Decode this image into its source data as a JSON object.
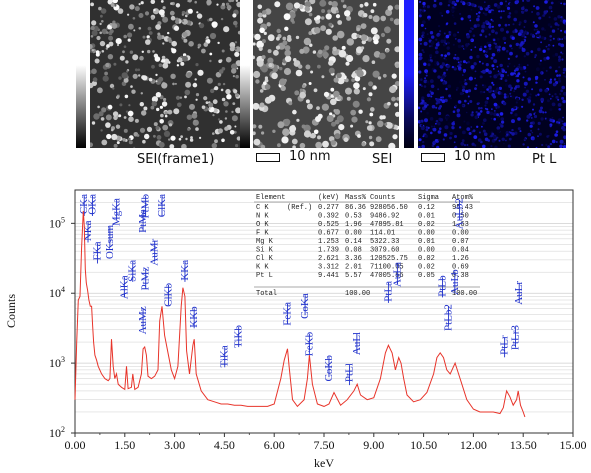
{
  "images": {
    "frame1_label": "SEI(frame1)",
    "sei_label": "SEI",
    "ptl_label": "Pt L",
    "scale1": "10 nm",
    "scale2": "10 nm"
  },
  "colors": {
    "spectrum": "#e8342a",
    "peak_markers": "#2233cc",
    "grid": "#cfcfcf",
    "pt_map": "#1c1cd8"
  },
  "table": {
    "headers": [
      "Element",
      "(keV)",
      "Mass%",
      "Counts",
      "Sigma",
      "Atom%"
    ],
    "rows": [
      [
        "C K",
        "0.277",
        "86.36",
        "928056.50",
        "0.12",
        "95.43"
      ],
      [
        "N K",
        "0.392",
        "0.53",
        "9486.92",
        "0.01",
        "0.50"
      ],
      [
        "O K",
        "0.525",
        "1.96",
        "47895.81",
        "0.02",
        "1.63"
      ],
      [
        "F K",
        "0.677",
        "0.00",
        "114.01",
        "0.00",
        "0.00"
      ],
      [
        "Mg K",
        "1.253",
        "0.14",
        "5322.33",
        "0.01",
        "0.07"
      ],
      [
        "Si K",
        "1.739",
        "0.08",
        "3079.60",
        "0.00",
        "0.04"
      ],
      [
        "Cl K",
        "2.621",
        "3.36",
        "120525.75",
        "0.02",
        "1.26"
      ],
      [
        "K K",
        "3.312",
        "2.01",
        "71100.05",
        "0.02",
        "0.69"
      ],
      [
        "Pt L",
        "9.441",
        "5.57",
        "47005.56",
        "0.05",
        "0.38"
      ]
    ],
    "ref_note": "(Ref.)",
    "total_label": "Total",
    "total_mass": "100.00",
    "total_atom": "100.00"
  },
  "chart_data": {
    "type": "line",
    "xlabel": "keV",
    "ylabel": "Counts",
    "yscale": "log",
    "xlim": [
      0,
      15
    ],
    "ylim": [
      100,
      300000
    ],
    "xticks": [
      "0.00",
      "1.50",
      "3.00",
      "4.50",
      "6.00",
      "7.50",
      "9.00",
      "10.50",
      "12.00",
      "13.50",
      "15.00"
    ],
    "yticks": [
      {
        "value": 100,
        "exp": "2"
      },
      {
        "value": 1000,
        "exp": "3"
      },
      {
        "value": 10000,
        "exp": "4"
      },
      {
        "value": 100000,
        "exp": "5"
      }
    ],
    "grid": true,
    "series": [
      {
        "x": [
          0.0,
          0.05,
          0.1,
          0.15,
          0.2,
          0.25,
          0.28,
          0.31,
          0.34,
          0.38,
          0.42,
          0.46,
          0.5,
          0.53,
          0.56,
          0.6,
          0.65,
          0.7,
          0.8,
          0.9,
          1.0,
          1.05,
          1.1,
          1.15,
          1.2,
          1.25,
          1.3,
          1.4,
          1.5,
          1.55,
          1.6,
          1.7,
          1.74,
          1.8,
          1.9,
          2.0,
          2.05,
          2.1,
          2.15,
          2.2,
          2.3,
          2.4,
          2.5,
          2.55,
          2.62,
          2.7,
          2.8,
          2.9,
          3.0,
          3.1,
          3.2,
          3.25,
          3.31,
          3.36,
          3.45,
          3.55,
          3.59,
          3.65,
          3.8,
          4.0,
          4.2,
          4.4,
          4.5,
          4.6,
          4.8,
          5.0,
          5.2,
          5.5,
          5.8,
          6.0,
          6.2,
          6.3,
          6.4,
          6.45,
          6.55,
          6.7,
          6.9,
          7.0,
          7.06,
          7.15,
          7.3,
          7.5,
          7.65,
          7.8,
          8.0,
          8.2,
          8.4,
          8.5,
          8.6,
          8.8,
          9.0,
          9.2,
          9.35,
          9.44,
          9.55,
          9.65,
          9.75,
          9.82,
          9.9,
          10.0,
          10.2,
          10.4,
          10.6,
          10.8,
          10.9,
          11.0,
          11.1,
          11.2,
          11.3,
          11.45,
          11.6,
          11.8,
          12.0,
          12.2,
          12.4,
          12.6,
          12.8,
          12.9,
          13.0,
          13.1,
          13.2,
          13.3,
          13.35,
          13.42,
          13.5,
          13.55
        ],
        "y": [
          300,
          2000,
          8000,
          9000,
          45000,
          150000,
          90000,
          22000,
          14000,
          11000,
          8000,
          6500,
          6500,
          3500,
          2000,
          1300,
          1100,
          900,
          700,
          600,
          560,
          600,
          2200,
          900,
          600,
          700,
          500,
          450,
          420,
          900,
          430,
          450,
          700,
          420,
          450,
          700,
          1600,
          1700,
          1300,
          650,
          600,
          650,
          800,
          4000,
          6500,
          2500,
          1400,
          800,
          600,
          900,
          6500,
          12000,
          9000,
          1500,
          700,
          1800,
          2200,
          700,
          400,
          300,
          280,
          260,
          260,
          260,
          250,
          250,
          240,
          240,
          240,
          260,
          600,
          1100,
          1600,
          900,
          300,
          240,
          300,
          600,
          1300,
          500,
          260,
          240,
          260,
          380,
          250,
          300,
          400,
          500,
          350,
          300,
          320,
          600,
          1400,
          1800,
          1400,
          800,
          1200,
          1000,
          600,
          350,
          280,
          300,
          380,
          700,
          1200,
          1400,
          1200,
          800,
          700,
          1000,
          600,
          300,
          220,
          200,
          200,
          200,
          190,
          230,
          400,
          330,
          250,
          300,
          400,
          250,
          200,
          170
        ]
      }
    ],
    "peaks": [
      {
        "label": "CKa",
        "x": 0.277,
        "y": 2000000
      },
      {
        "label": "OKa",
        "x": 0.525,
        "y": 1400000
      },
      {
        "label": "NKa",
        "x": 0.392,
        "y": 110000
      },
      {
        "label": "FKa",
        "x": 0.677,
        "y": 55000
      },
      {
        "label": "OKsum",
        "x": 1.05,
        "y": 95000
      },
      {
        "label": "MgKa",
        "x": 1.253,
        "y": 230000
      },
      {
        "label": "AlKa",
        "x": 1.486,
        "y": 18000
      },
      {
        "label": "SiKa",
        "x": 1.739,
        "y": 30000
      },
      {
        "label": "AuMz",
        "x": 2.05,
        "y": 6500
      },
      {
        "label": "PtMa",
        "x": 2.05,
        "y": 160000
      },
      {
        "label": "PtMz",
        "x": 2.13,
        "y": 24000
      },
      {
        "label": "PtMb",
        "x": 2.127,
        "y": 700000
      },
      {
        "label": "AuMr",
        "x": 2.4,
        "y": 60000
      },
      {
        "label": "ClKa",
        "x": 2.621,
        "y": 350000
      },
      {
        "label": "ClKb",
        "x": 2.815,
        "y": 14000
      },
      {
        "label": "KKa",
        "x": 3.312,
        "y": 30000
      },
      {
        "label": "KKb",
        "x": 3.589,
        "y": 6500
      },
      {
        "label": "TiKa",
        "x": 4.51,
        "y": 1800
      },
      {
        "label": "TiKb",
        "x": 4.93,
        "y": 3500
      },
      {
        "label": "FeKa",
        "x": 6.4,
        "y": 7500
      },
      {
        "label": "CoKa",
        "x": 6.93,
        "y": 10000
      },
      {
        "label": "FeKb",
        "x": 7.06,
        "y": 2800
      },
      {
        "label": "CoKb",
        "x": 7.65,
        "y": 1300
      },
      {
        "label": "PtLl",
        "x": 8.27,
        "y": 1000
      },
      {
        "label": "AuLl",
        "x": 8.49,
        "y": 2800
      },
      {
        "label": "PtLa",
        "x": 9.44,
        "y": 15000
      },
      {
        "label": "AuLa",
        "x": 9.71,
        "y": 28000
      },
      {
        "label": "PtLb",
        "x": 11.07,
        "y": 18000
      },
      {
        "label": "PtLb2",
        "x": 11.25,
        "y": 7000
      },
      {
        "label": "AuLb",
        "x": 11.44,
        "y": 22000
      },
      {
        "label": "AuLb2",
        "x": 11.58,
        "y": 230000
      },
      {
        "label": "PtLr",
        "x": 12.94,
        "y": 2500
      },
      {
        "label": "PtLr3",
        "x": 13.27,
        "y": 3500
      },
      {
        "label": "AuLr",
        "x": 13.38,
        "y": 15000
      }
    ]
  }
}
